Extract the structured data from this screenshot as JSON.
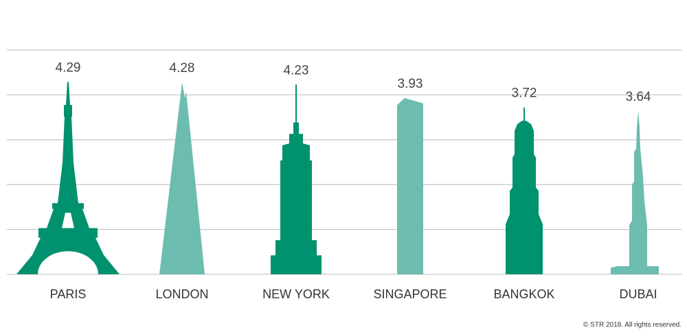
{
  "chart_data": {
    "type": "bar",
    "categories": [
      "PARIS",
      "LONDON",
      "NEW YORK",
      "SINGAPORE",
      "BANGKOK",
      "DUBAI"
    ],
    "values": [
      4.29,
      4.28,
      4.23,
      3.93,
      3.72,
      3.64
    ],
    "colors": [
      "#00916e",
      "#6dbcb0",
      "#00916e",
      "#6dbcb0",
      "#00916e",
      "#6dbcb0"
    ],
    "ylim": [
      0,
      5
    ],
    "yticks": [
      0,
      1,
      2,
      3,
      4,
      5
    ],
    "grid": true,
    "note": "© STR 2018. All rights reserved."
  }
}
